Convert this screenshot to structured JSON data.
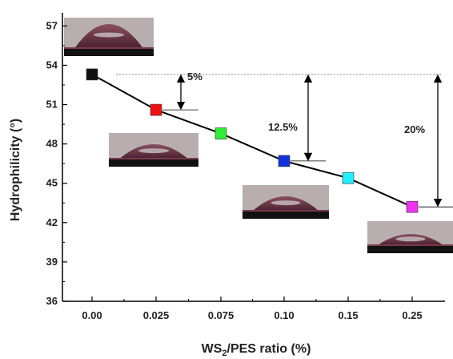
{
  "chart_data": {
    "type": "line",
    "categories": [
      "0.00",
      "0.025",
      "0.075",
      "0.10",
      "0.15",
      "0.25"
    ],
    "series": [
      {
        "values": [
          53.3,
          50.6,
          48.8,
          46.7,
          45.4,
          43.2
        ],
        "marker_colors": [
          "#111111",
          "#ee1111",
          "#33ee33",
          "#1133dd",
          "#22eeff",
          "#ee33ee"
        ]
      }
    ],
    "xlabel_main": "WS",
    "xlabel_sub": "2",
    "xlabel_rest": "/PES ratio (%)",
    "ylabel": "Hydrophilicity (°)",
    "ylim": [
      36,
      58
    ],
    "yticks": [
      "36",
      "39",
      "42",
      "45",
      "48",
      "51",
      "54",
      "57"
    ],
    "grid": false,
    "annotations": [
      {
        "label": "5%",
        "from": 53.3,
        "to": 50.6,
        "at_category": 1
      },
      {
        "label": "12.5%",
        "from": 53.3,
        "to": 46.7,
        "at_category": 3
      },
      {
        "label": "20%",
        "from": 53.3,
        "to": 43.2,
        "at_category": 5
      }
    ],
    "droplet_insets": [
      "0.00",
      "0.025",
      "0.10",
      "0.25"
    ]
  }
}
